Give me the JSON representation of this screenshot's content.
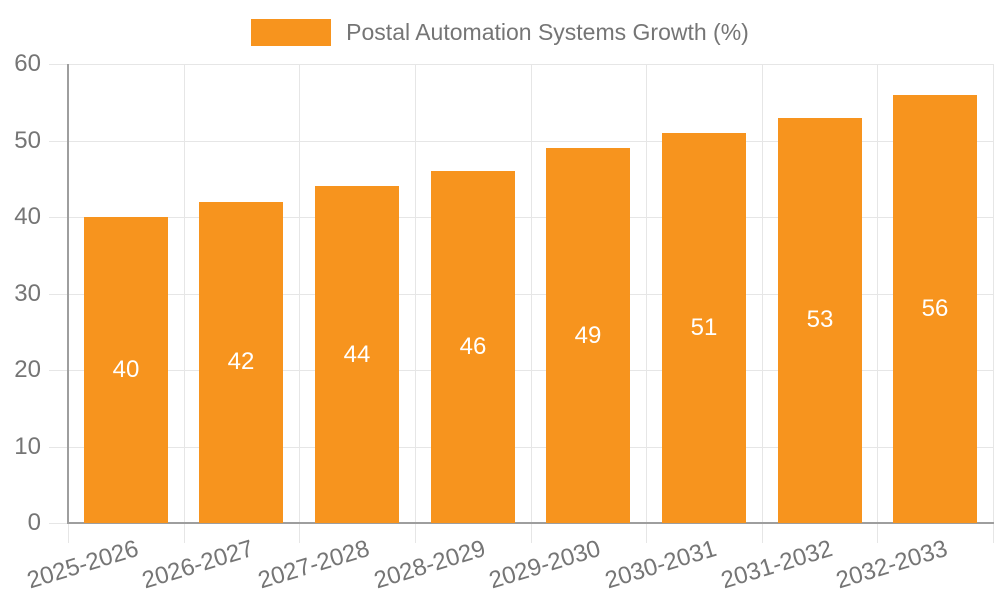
{
  "chart_data": {
    "type": "bar",
    "title": "Postal Automation Systems Growth (%)",
    "xlabel": "",
    "ylabel": "",
    "categories": [
      "2025-2026",
      "2026-2027",
      "2027-2028",
      "2028-2029",
      "2029-2030",
      "2030-2031",
      "2031-2032",
      "2032-2033"
    ],
    "values": [
      40,
      42,
      44,
      46,
      49,
      51,
      53,
      56
    ],
    "value_labels": [
      "40",
      "42",
      "44",
      "46",
      "49",
      "51",
      "53",
      "56"
    ],
    "ylim": [
      0,
      60
    ],
    "yticks": [
      0,
      10,
      20,
      30,
      40,
      50,
      60
    ],
    "grid": true,
    "legend_position": "top-center",
    "legend": [
      {
        "label": "Postal Automation Systems Growth (%)",
        "color": "#F7941E"
      }
    ],
    "colors": {
      "bar": "#F7941E",
      "value_label": "#FFFFFF",
      "axis_line": "#9E9E9E",
      "grid_line": "#E6E6E6",
      "tick_label": "#757575",
      "legend_text": "#757575",
      "background": "#FFFFFF"
    }
  }
}
